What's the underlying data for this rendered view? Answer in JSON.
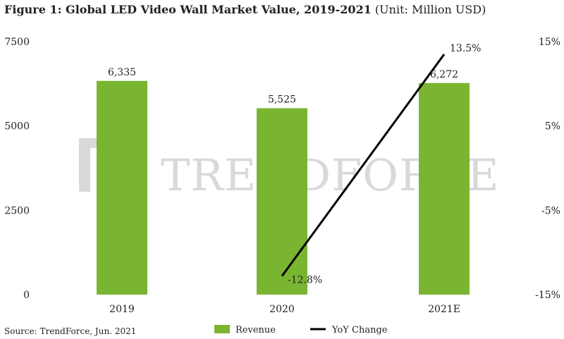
{
  "title": {
    "main": "Figure 1: Global LED Video Wall Market Value, 2019-2021",
    "unit": "(Unit: Million USD)"
  },
  "source": "Source: TrendForce, Jun. 2021",
  "watermark": "TRENDFORCE",
  "colors": {
    "bar": "#7ab532",
    "line": "#000000",
    "watermark": "#d9d9d9"
  },
  "chart_data": {
    "type": "bar",
    "categories": [
      "2019",
      "2020",
      "2021E"
    ],
    "series": [
      {
        "name": "Revenue",
        "type": "bar",
        "axis": "left",
        "values": [
          6335,
          5525,
          6272
        ],
        "labels": [
          "6,335",
          "5,525",
          "6,272"
        ]
      },
      {
        "name": "YoY Change",
        "type": "line",
        "axis": "right",
        "values": [
          null,
          -12.8,
          13.5
        ],
        "labels": [
          "",
          "-12.8%",
          "13.5%"
        ]
      }
    ],
    "y_left": {
      "range": [
        0,
        7500
      ],
      "ticks": [
        0,
        2500,
        5000,
        7500
      ],
      "tick_labels": [
        "0",
        "2500",
        "5000",
        "7500"
      ]
    },
    "y_right": {
      "range": [
        -15,
        15
      ],
      "ticks": [
        -15,
        -5,
        5,
        15
      ],
      "tick_labels": [
        "-15%",
        "-5%",
        "5%",
        "15%"
      ]
    },
    "grid": false,
    "legend": {
      "position": "bottom",
      "items": [
        "Revenue",
        "YoY Change"
      ]
    }
  }
}
